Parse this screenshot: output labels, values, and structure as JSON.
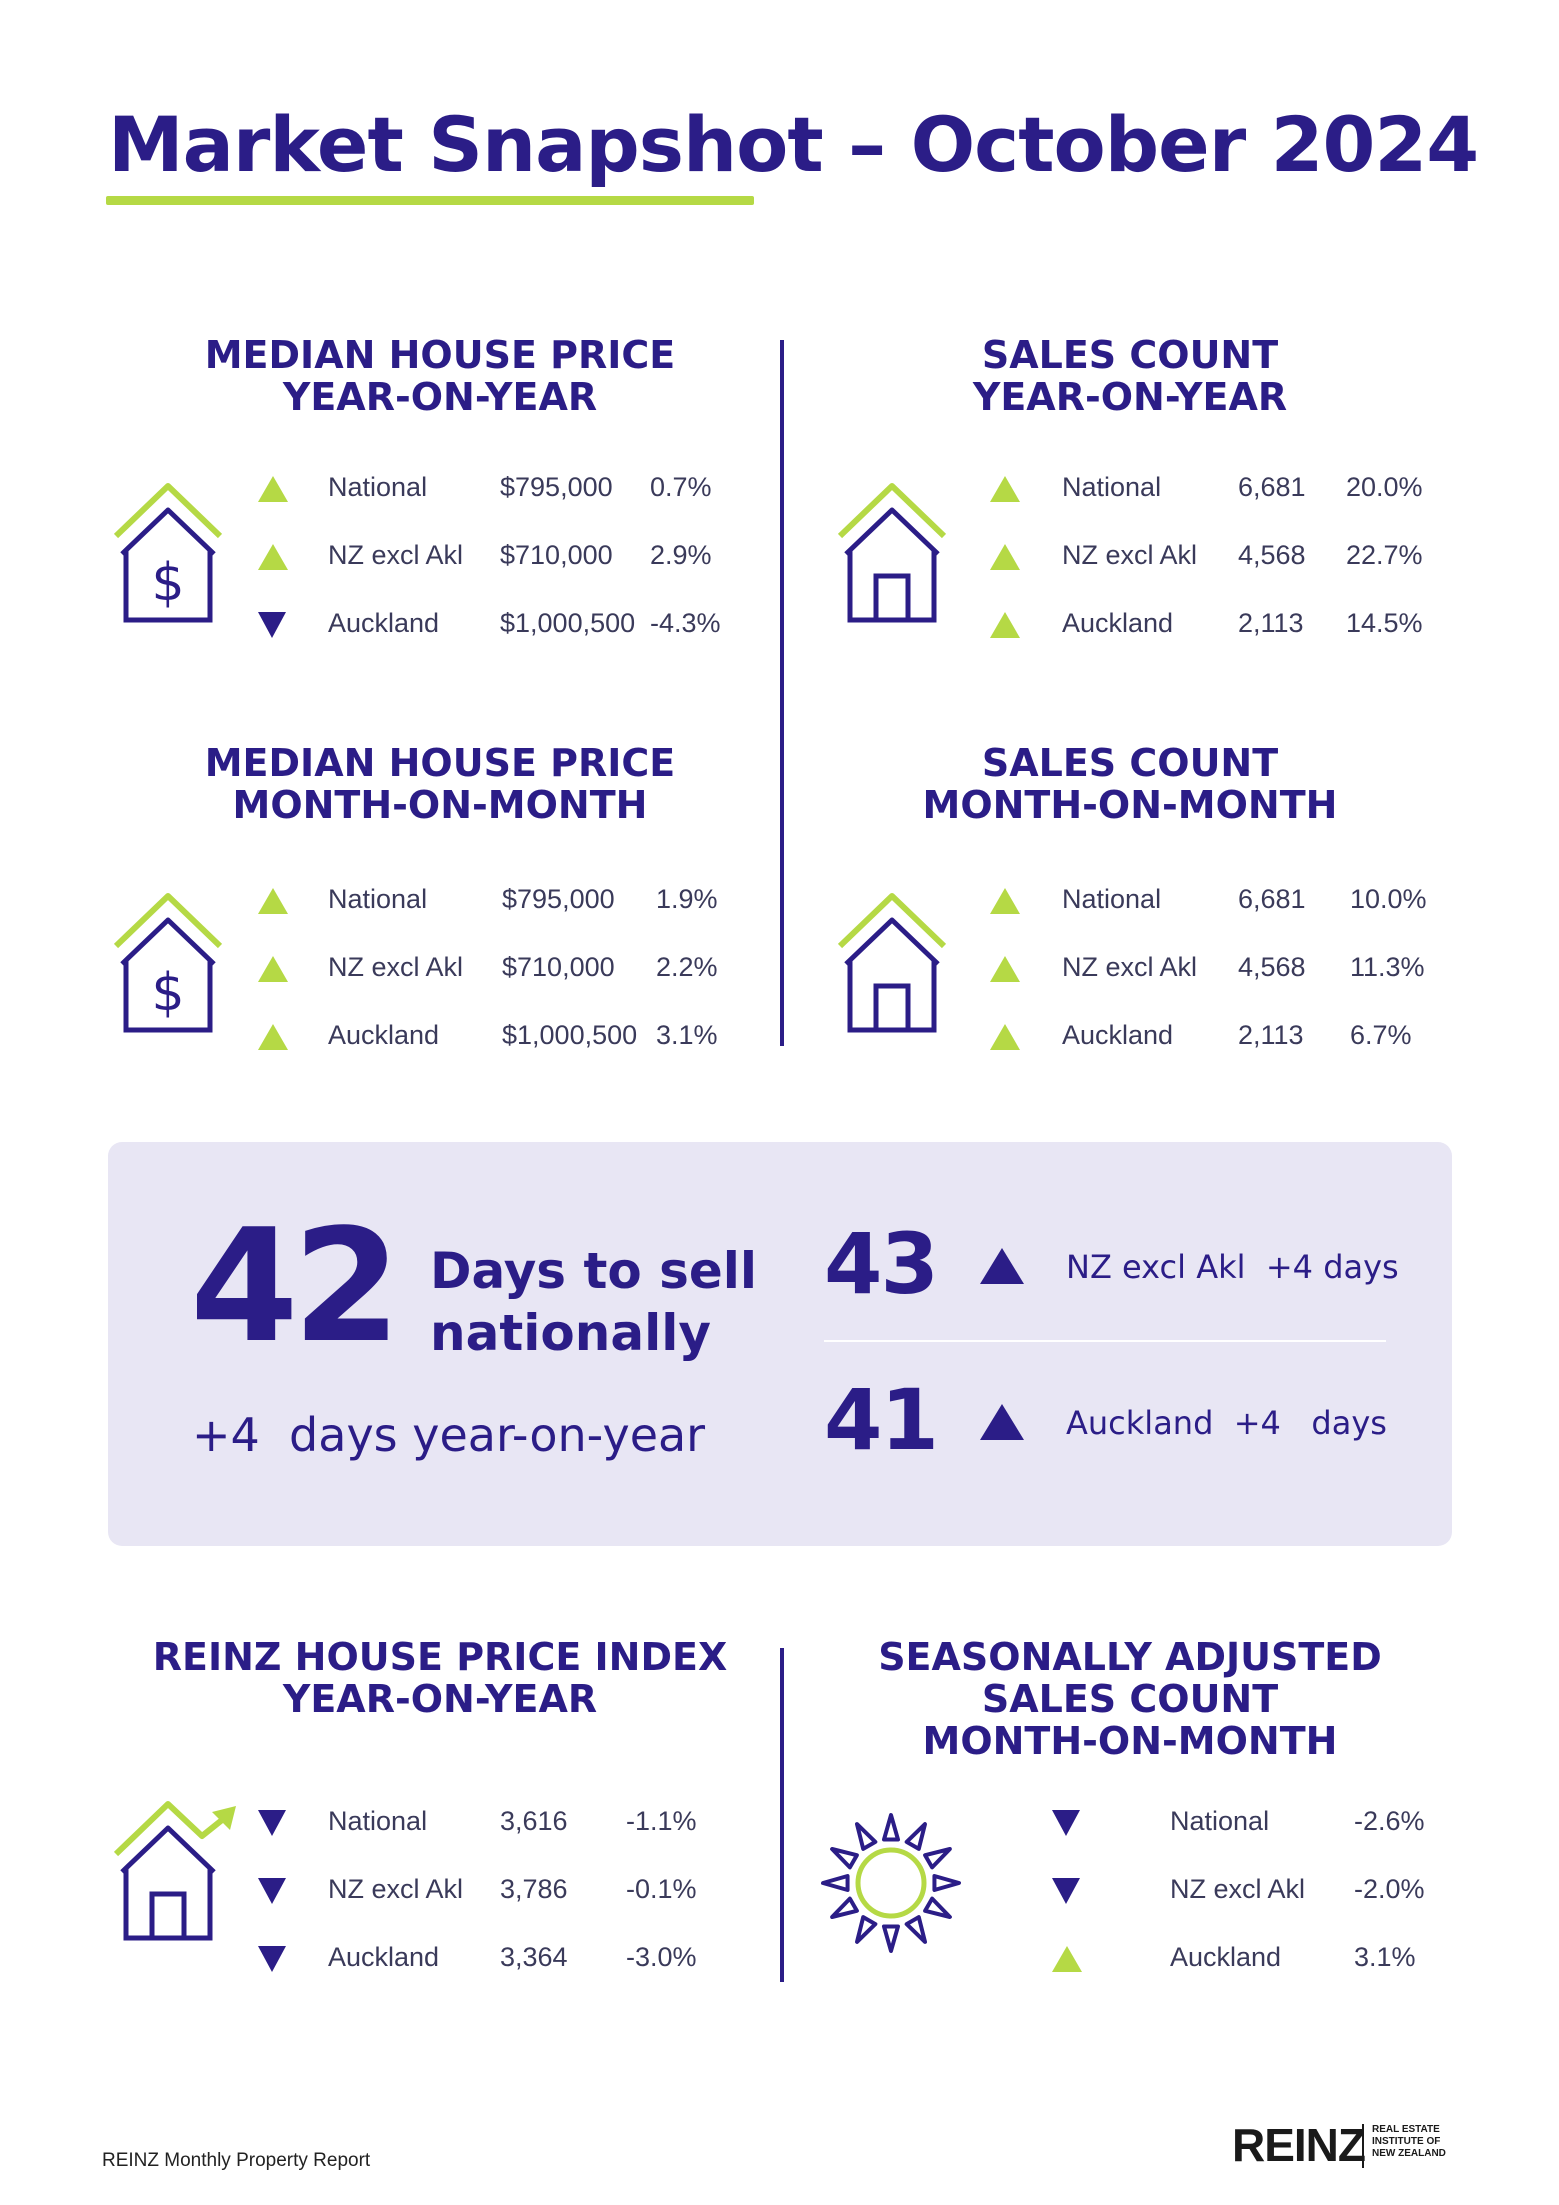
{
  "title": "Market Snapshot – October 2024",
  "sections": {
    "median_yoy": {
      "heading_line1": "MEDIAN HOUSE PRICE",
      "heading_line2": "YEAR-ON-YEAR",
      "rows": [
        {
          "region": "National",
          "value": "$795,000",
          "change": "0.7%",
          "direction": "up"
        },
        {
          "region": "NZ excl Akl",
          "value": "$710,000",
          "change": "2.9%",
          "direction": "up"
        },
        {
          "region": "Auckland",
          "value": "$1,000,500",
          "change": "-4.3%",
          "direction": "down"
        }
      ]
    },
    "sales_yoy": {
      "heading_line1": "SALES COUNT",
      "heading_line2": "YEAR-ON-YEAR",
      "rows": [
        {
          "region": "National",
          "value": "6,681",
          "change": "20.0%",
          "direction": "up"
        },
        {
          "region": "NZ excl Akl",
          "value": "4,568",
          "change": "22.7%",
          "direction": "up"
        },
        {
          "region": "Auckland",
          "value": "2,113",
          "change": "14.5%",
          "direction": "up"
        }
      ]
    },
    "median_mom": {
      "heading_line1": "MEDIAN HOUSE PRICE",
      "heading_line2": "MONTH-ON-MONTH",
      "rows": [
        {
          "region": "National",
          "value": "$795,000",
          "change": "1.9%",
          "direction": "up"
        },
        {
          "region": "NZ excl Akl",
          "value": "$710,000",
          "change": "2.2%",
          "direction": "up"
        },
        {
          "region": "Auckland",
          "value": "$1,000,500",
          "change": "3.1%",
          "direction": "up"
        }
      ]
    },
    "sales_mom": {
      "heading_line1": "SALES COUNT",
      "heading_line2": "MONTH-ON-MONTH",
      "rows": [
        {
          "region": "National",
          "value": "6,681",
          "change": "10.0%",
          "direction": "up"
        },
        {
          "region": "NZ excl Akl",
          "value": "4,568",
          "change": "11.3%",
          "direction": "up"
        },
        {
          "region": "Auckland",
          "value": "2,113",
          "change": "6.7%",
          "direction": "up"
        }
      ]
    },
    "hpi_yoy": {
      "heading_line1": "REINZ HOUSE PRICE INDEX",
      "heading_line2": "YEAR-ON-YEAR",
      "rows": [
        {
          "region": "National",
          "value": "3,616",
          "change": "-1.1%",
          "direction": "down"
        },
        {
          "region": "NZ excl Akl",
          "value": "3,786",
          "change": "-0.1%",
          "direction": "down"
        },
        {
          "region": "Auckland",
          "value": "3,364",
          "change": "-3.0%",
          "direction": "down"
        }
      ]
    },
    "seasonal_mom": {
      "heading_line1": "SEASONALLY ADJUSTED",
      "heading_line2": "SALES COUNT",
      "heading_line3": "MONTH-ON-MONTH",
      "rows": [
        {
          "region": "National",
          "change": "-2.6%",
          "direction": "down"
        },
        {
          "region": "NZ excl Akl",
          "change": "-2.0%",
          "direction": "down"
        },
        {
          "region": "Auckland",
          "change": "3.1%",
          "direction": "up"
        }
      ]
    }
  },
  "days_to_sell": {
    "national_days": "42",
    "label_line1": "Days to sell",
    "label_line2": "nationally",
    "yoy_text": "+4  days year-on-year",
    "nz_excl_days": "43",
    "nz_excl_text": "NZ excl Akl  +4 days",
    "auckland_days": "41",
    "auckland_text": "Auckland  +4   days"
  },
  "footer": {
    "report_name": "REINZ Monthly Property Report",
    "logo": "REINZ",
    "logo_sub": "REAL ESTATE\nINSTITUTE OF\nNEW ZEALAND"
  },
  "colors": {
    "navy": "#2b1d87",
    "green": "#b5d945",
    "panel": "#e8e6f4"
  }
}
